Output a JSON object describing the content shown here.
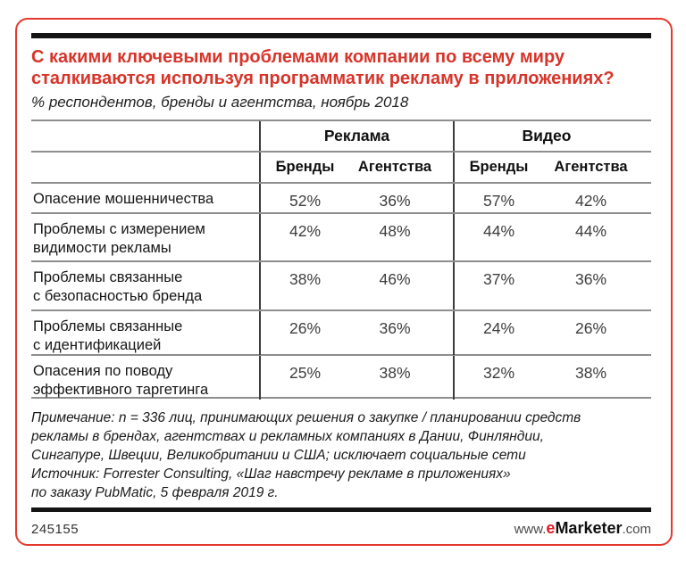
{
  "colors": {
    "title_red": "#d7342a",
    "border_red": "#e6392d",
    "logo_red": "#e01e25",
    "rule_black": "#141414",
    "grid_gray": "#8e8e8e"
  },
  "header": {
    "title_lines": [
      "С какими ключевыми проблемами компании по всему миру",
      "сталкиваются используя программатик рекламу в приложениях?"
    ],
    "subtitle": "% респондентов, бренды и агентства, ноябрь 2018"
  },
  "table": {
    "column_groups": [
      {
        "label": "Реклама"
      },
      {
        "label": "Видео"
      }
    ],
    "subheaders": [
      "Бренды",
      "Агентства",
      "Бренды",
      "Агентства"
    ],
    "rows": [
      {
        "label1": "Опасение мошенничества",
        "label2": "",
        "values": [
          "52%",
          "36%",
          "57%",
          "42%"
        ]
      },
      {
        "label1": "Проблемы с измерением",
        "label2": "видимости рекламы",
        "values": [
          "42%",
          "48%",
          "44%",
          "44%"
        ]
      },
      {
        "label1": "Проблемы связанные",
        "label2": "с безопасностью бренда",
        "values": [
          "38%",
          "46%",
          "37%",
          "36%"
        ]
      },
      {
        "label1": "Проблемы связанные",
        "label2": "с идентификацией",
        "values": [
          "26%",
          "36%",
          "24%",
          "26%"
        ]
      },
      {
        "label1": "Опасения по поводу",
        "label2": "эффективного таргетинга",
        "values": [
          "25%",
          "38%",
          "32%",
          "38%"
        ]
      }
    ]
  },
  "footnote": {
    "lines": [
      "Примечание: n = 336 лиц, принимающих решения о закупке / планировании средств",
      "рекламы в брендах, агентствах и рекламных компаниях в Дании, Финляндии,",
      "Сингапуре, Швеции, Великобритании и США; исключает социальные сети",
      "Источник: Forrester Consulting, «Шаг навстречу рекламе в приложениях»",
      "по заказу PubMatic, 5 февраля 2019 г."
    ]
  },
  "footer": {
    "chart_id": "245155",
    "logo": {
      "www": "www.",
      "e": "e",
      "marketer": "Marketer",
      "com": ".com"
    }
  },
  "chart_data": {
    "type": "table",
    "title": "С какими ключевыми проблемами компании по всему миру сталкиваются используя программатик рекламу в приложениях?",
    "subtitle": "% респондентов, бренды и агентства, ноябрь 2018",
    "column_groups": [
      "Реклама",
      "Видео"
    ],
    "columns": [
      "Реклама — Бренды",
      "Реклама — Агентства",
      "Видео — Бренды",
      "Видео — Агентства"
    ],
    "unit": "%",
    "rows": [
      {
        "label": "Опасение мошенничества",
        "values": [
          52,
          36,
          57,
          42
        ]
      },
      {
        "label": "Проблемы с измерением видимости рекламы",
        "values": [
          42,
          48,
          44,
          44
        ]
      },
      {
        "label": "Проблемы связанные с безопасностью бренда",
        "values": [
          38,
          46,
          37,
          36
        ]
      },
      {
        "label": "Проблемы связанные с идентификацией",
        "values": [
          26,
          36,
          24,
          26
        ]
      },
      {
        "label": "Опасения по поводу эффективного таргетинга",
        "values": [
          25,
          38,
          32,
          38
        ]
      }
    ],
    "note": "Примечание: n = 336 лиц, принимающих решения о закупке / планировании средств рекламы в брендах, агентствах и рекламных компаниях в Дании, Финляндии, Сингапуре, Швеции, Великобритании и США; исключает социальные сети",
    "source": "Источник: Forrester Consulting, «Шаг навстречу рекламе в приложениях» по заказу PubMatic, 5 февраля 2019 г.",
    "chart_id": "245155"
  }
}
